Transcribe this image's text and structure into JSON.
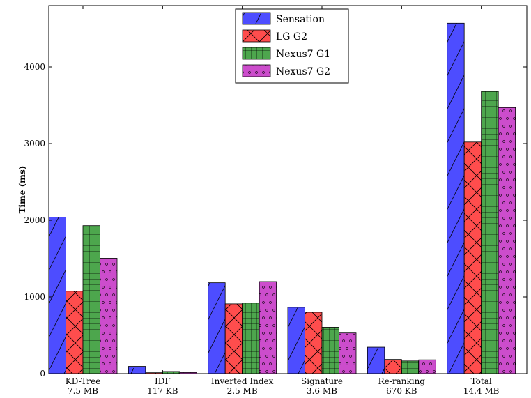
{
  "chart_data": {
    "type": "bar",
    "title": "",
    "xlabel": "",
    "ylabel": "Time (ms)",
    "ylim": [
      0,
      4800
    ],
    "yticks": [
      0,
      1000,
      2000,
      3000,
      4000
    ],
    "grid": false,
    "legend_position": "top-center",
    "categories": [
      {
        "line1": "KD-Tree",
        "line2": "7.5 MB"
      },
      {
        "line1": "IDF",
        "line2": "117 KB"
      },
      {
        "line1": "Inverted Index",
        "line2": "2.5 MB"
      },
      {
        "line1": "Signature",
        "line2": "3.6 MB"
      },
      {
        "line1": "Re-ranking",
        "line2": "670 KB"
      },
      {
        "line1": "Total",
        "line2": "14.4 MB"
      }
    ],
    "series": [
      {
        "name": "Sensation",
        "color": "#4d4dff",
        "hatch": "diagonal",
        "values": [
          2040,
          95,
          1185,
          865,
          345,
          4570
        ]
      },
      {
        "name": "LG G2",
        "color": "#ff4d4d",
        "hatch": "cross",
        "values": [
          1075,
          12,
          910,
          800,
          185,
          3020
        ]
      },
      {
        "name": "Nexus7 G1",
        "color": "#4da64d",
        "hatch": "grid",
        "values": [
          1930,
          28,
          920,
          605,
          165,
          3680
        ]
      },
      {
        "name": "Nexus7 G2",
        "color": "#cc4dcc",
        "hatch": "dots",
        "values": [
          1505,
          15,
          1200,
          530,
          180,
          3470
        ]
      }
    ]
  }
}
